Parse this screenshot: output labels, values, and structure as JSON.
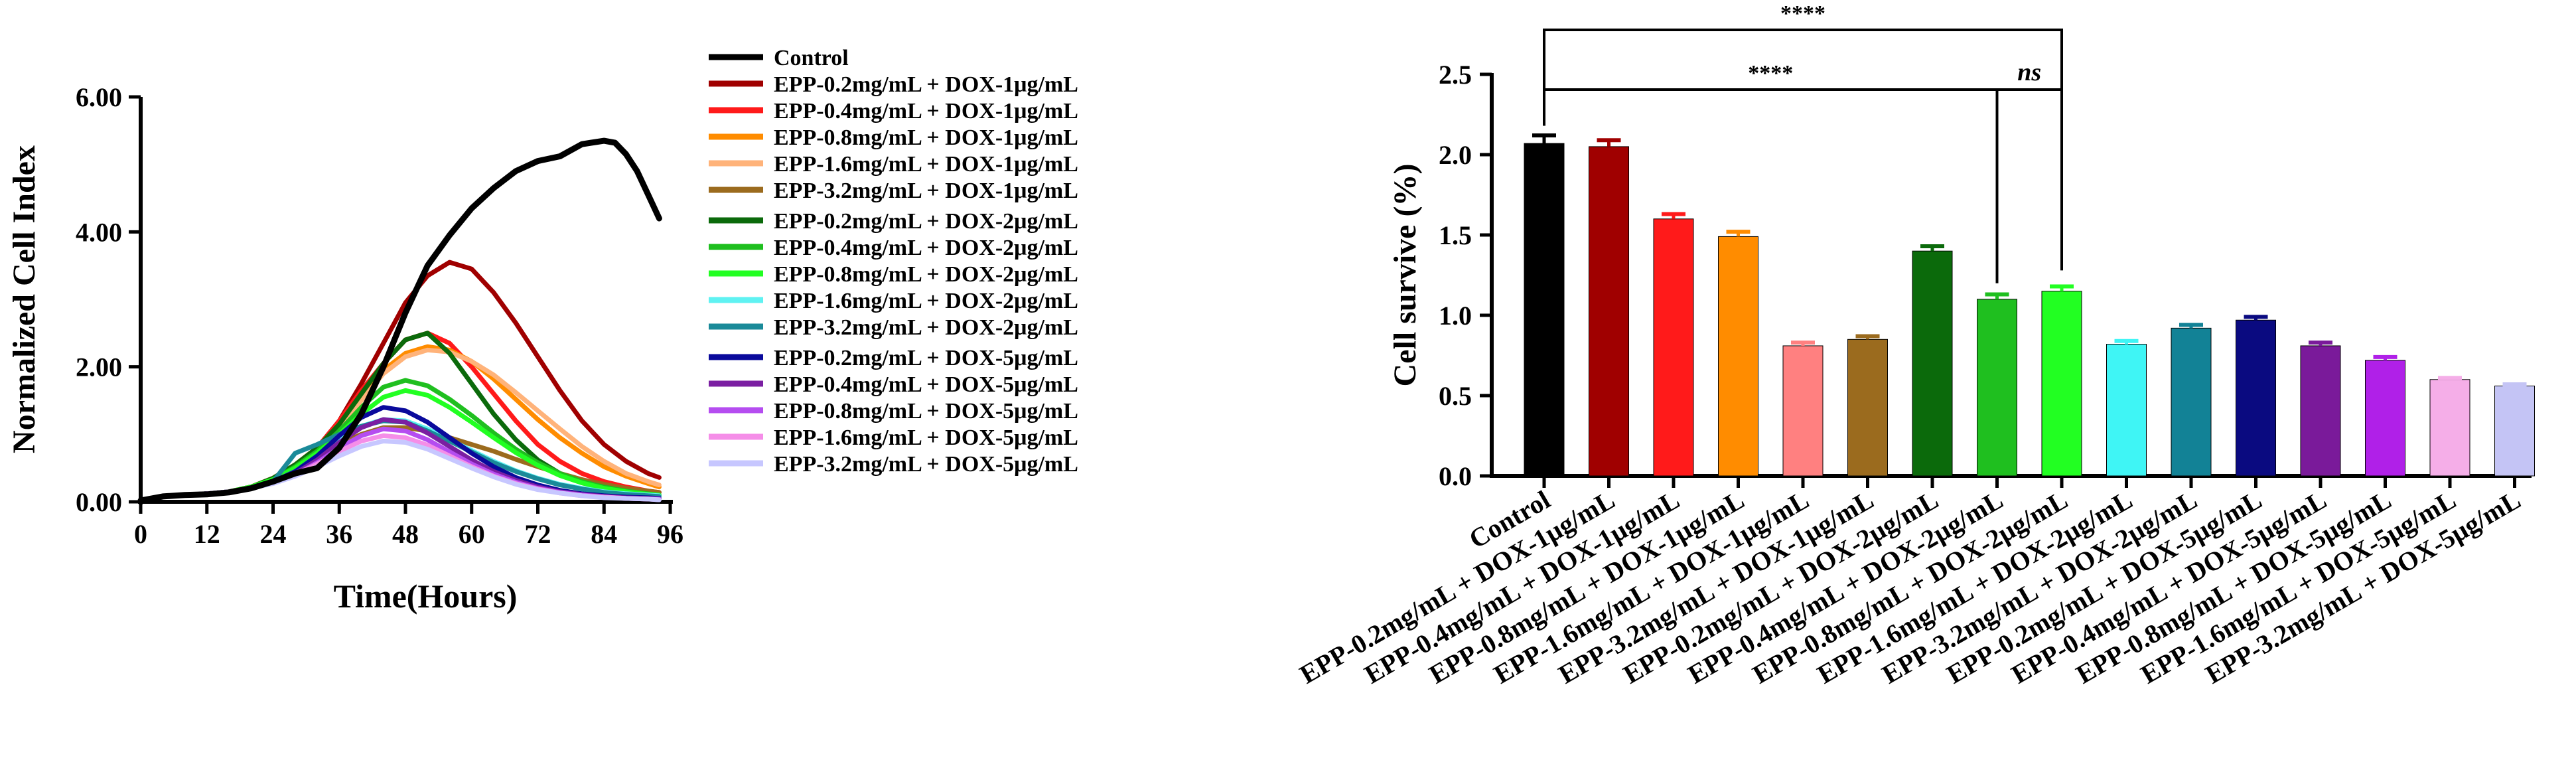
{
  "chart_data": [
    {
      "type": "line",
      "title": "",
      "xlabel": "Time(Hours)",
      "ylabel": "Normalized Cell Index",
      "xlim": [
        0,
        96
      ],
      "ylim": [
        0,
        6
      ],
      "xticks": [
        0,
        12,
        24,
        36,
        48,
        60,
        72,
        84,
        96
      ],
      "xtick_labels": [
        "0",
        "12",
        "24",
        "36",
        "48",
        "60",
        "72",
        "84",
        "96"
      ],
      "yticks": [
        0,
        2,
        4,
        6
      ],
      "ytick_labels": [
        "0.00",
        "2.00",
        "4.00",
        "6.00"
      ],
      "grid": false,
      "legend_position": "right",
      "series": [
        {
          "name": "Control",
          "color": "#000000",
          "x": [
            0,
            4,
            8,
            12,
            16,
            20,
            24,
            28,
            32,
            36,
            40,
            44,
            48,
            52,
            56,
            60,
            64,
            68,
            72,
            76,
            80,
            84,
            86,
            88,
            90,
            92,
            94
          ],
          "values": [
            0.02,
            0.08,
            0.1,
            0.11,
            0.14,
            0.2,
            0.3,
            0.42,
            0.5,
            0.8,
            1.3,
            2.0,
            2.8,
            3.5,
            3.95,
            4.35,
            4.65,
            4.9,
            5.05,
            5.12,
            5.3,
            5.35,
            5.32,
            5.15,
            4.9,
            4.55,
            4.2
          ]
        },
        {
          "name": "EPP-0.2mg/mL + DOX-1μg/mL",
          "color": "#a00000",
          "x": [
            0,
            4,
            8,
            12,
            16,
            20,
            24,
            28,
            32,
            36,
            40,
            44,
            48,
            52,
            56,
            60,
            64,
            68,
            72,
            76,
            80,
            84,
            88,
            92,
            94
          ],
          "values": [
            0.02,
            0.08,
            0.1,
            0.12,
            0.15,
            0.22,
            0.35,
            0.55,
            0.8,
            1.2,
            1.75,
            2.35,
            2.95,
            3.35,
            3.55,
            3.45,
            3.1,
            2.65,
            2.15,
            1.65,
            1.2,
            0.85,
            0.6,
            0.42,
            0.36
          ]
        },
        {
          "name": "EPP-0.4mg/mL + DOX-1μg/mL",
          "color": "#ff1a1a",
          "x": [
            0,
            4,
            8,
            12,
            16,
            20,
            24,
            28,
            32,
            36,
            40,
            44,
            48,
            52,
            56,
            60,
            64,
            68,
            72,
            76,
            80,
            84,
            88,
            92,
            94
          ],
          "values": [
            0.02,
            0.08,
            0.1,
            0.12,
            0.15,
            0.22,
            0.35,
            0.55,
            0.8,
            1.2,
            1.65,
            2.05,
            2.4,
            2.5,
            2.35,
            2.0,
            1.6,
            1.2,
            0.85,
            0.6,
            0.42,
            0.3,
            0.22,
            0.16,
            0.14
          ]
        },
        {
          "name": "EPP-0.8mg/mL + DOX-1μg/mL",
          "color": "#ff8c00",
          "x": [
            0,
            4,
            8,
            12,
            16,
            20,
            24,
            28,
            32,
            36,
            40,
            44,
            48,
            52,
            56,
            60,
            64,
            68,
            72,
            76,
            80,
            84,
            88,
            92,
            94
          ],
          "values": [
            0.02,
            0.08,
            0.1,
            0.12,
            0.15,
            0.22,
            0.35,
            0.55,
            0.8,
            1.15,
            1.55,
            1.95,
            2.2,
            2.3,
            2.25,
            2.08,
            1.82,
            1.52,
            1.22,
            0.95,
            0.72,
            0.52,
            0.38,
            0.27,
            0.22
          ]
        },
        {
          "name": "EPP-1.6mg/mL + DOX-1μg/mL",
          "color": "#ffb37a",
          "x": [
            0,
            4,
            8,
            12,
            16,
            20,
            24,
            28,
            32,
            36,
            40,
            44,
            48,
            52,
            56,
            60,
            64,
            68,
            72,
            76,
            80,
            84,
            88,
            92,
            94
          ],
          "values": [
            0.02,
            0.08,
            0.1,
            0.12,
            0.15,
            0.22,
            0.33,
            0.52,
            0.78,
            1.1,
            1.5,
            1.9,
            2.15,
            2.25,
            2.22,
            2.08,
            1.88,
            1.62,
            1.35,
            1.08,
            0.82,
            0.6,
            0.42,
            0.3,
            0.25
          ]
        },
        {
          "name": "EPP-3.2mg/mL + DOX-1μg/mL",
          "color": "#9b6b1e",
          "x": [
            0,
            4,
            8,
            12,
            16,
            20,
            24,
            28,
            32,
            36,
            40,
            44,
            48,
            52,
            56,
            60,
            64,
            68,
            72,
            76,
            80,
            84,
            88,
            92,
            94
          ],
          "values": [
            0.02,
            0.08,
            0.1,
            0.12,
            0.15,
            0.2,
            0.3,
            0.45,
            0.65,
            0.85,
            1.0,
            1.1,
            1.1,
            1.05,
            0.95,
            0.85,
            0.75,
            0.63,
            0.52,
            0.42,
            0.33,
            0.26,
            0.2,
            0.16,
            0.14
          ]
        },
        {
          "name": "EPP-0.2mg/mL + DOX-2μg/mL",
          "color": "#0b6a0b",
          "x": [
            0,
            4,
            8,
            12,
            16,
            20,
            24,
            28,
            32,
            36,
            40,
            44,
            48,
            52,
            56,
            60,
            64,
            68,
            72,
            76,
            80,
            84,
            88,
            92,
            94
          ],
          "values": [
            0.02,
            0.08,
            0.1,
            0.12,
            0.15,
            0.22,
            0.35,
            0.55,
            0.8,
            1.15,
            1.6,
            2.05,
            2.4,
            2.5,
            2.2,
            1.75,
            1.3,
            0.92,
            0.62,
            0.42,
            0.28,
            0.2,
            0.15,
            0.11,
            0.1
          ]
        },
        {
          "name": "EPP-0.4mg/mL + DOX-2μg/mL",
          "color": "#1fbf1f",
          "x": [
            0,
            4,
            8,
            12,
            16,
            20,
            24,
            28,
            32,
            36,
            40,
            44,
            48,
            52,
            56,
            60,
            64,
            68,
            72,
            76,
            80,
            84,
            88,
            92,
            94
          ],
          "values": [
            0.02,
            0.08,
            0.1,
            0.12,
            0.15,
            0.22,
            0.33,
            0.52,
            0.75,
            1.05,
            1.4,
            1.7,
            1.8,
            1.72,
            1.52,
            1.28,
            1.02,
            0.78,
            0.58,
            0.42,
            0.3,
            0.22,
            0.16,
            0.12,
            0.1
          ]
        },
        {
          "name": "EPP-0.8mg/mL + DOX-2μg/mL",
          "color": "#22ff22",
          "x": [
            0,
            4,
            8,
            12,
            16,
            20,
            24,
            28,
            32,
            36,
            40,
            44,
            48,
            52,
            56,
            60,
            64,
            68,
            72,
            76,
            80,
            84,
            88,
            92,
            94
          ],
          "values": [
            0.02,
            0.08,
            0.1,
            0.12,
            0.15,
            0.22,
            0.33,
            0.5,
            0.72,
            1.0,
            1.3,
            1.55,
            1.65,
            1.58,
            1.4,
            1.18,
            0.95,
            0.73,
            0.54,
            0.39,
            0.28,
            0.2,
            0.15,
            0.11,
            0.1
          ]
        },
        {
          "name": "EPP-1.6mg/mL + DOX-2μg/mL",
          "color": "#5ff2f2",
          "x": [
            0,
            4,
            8,
            12,
            16,
            20,
            24,
            28,
            32,
            36,
            40,
            44,
            48,
            52,
            56,
            60,
            64,
            68,
            72,
            76,
            80,
            84,
            88,
            92,
            94
          ],
          "values": [
            0.02,
            0.08,
            0.1,
            0.12,
            0.15,
            0.2,
            0.3,
            0.45,
            0.68,
            0.92,
            1.12,
            1.22,
            1.2,
            1.08,
            0.92,
            0.76,
            0.6,
            0.46,
            0.35,
            0.26,
            0.2,
            0.15,
            0.12,
            0.1,
            0.09
          ]
        },
        {
          "name": "EPP-3.2mg/mL + DOX-2μg/mL",
          "color": "#1a8a99",
          "x": [
            0,
            4,
            8,
            12,
            16,
            20,
            24,
            28,
            32,
            36,
            40,
            44,
            48,
            52,
            56,
            60,
            64,
            68,
            72,
            76,
            80,
            84,
            88,
            92,
            94
          ],
          "values": [
            0.02,
            0.08,
            0.1,
            0.12,
            0.15,
            0.2,
            0.3,
            0.72,
            0.85,
            1.0,
            1.12,
            1.2,
            1.18,
            1.05,
            0.9,
            0.74,
            0.58,
            0.45,
            0.34,
            0.25,
            0.19,
            0.14,
            0.11,
            0.09,
            0.08
          ]
        },
        {
          "name": "EPP-0.2mg/mL + DOX-5μg/mL",
          "color": "#0a0a9c",
          "x": [
            0,
            4,
            8,
            12,
            16,
            20,
            24,
            28,
            32,
            36,
            40,
            44,
            48,
            52,
            56,
            60,
            64,
            68,
            72,
            76,
            80,
            84,
            88,
            92,
            94
          ],
          "values": [
            0.02,
            0.08,
            0.1,
            0.12,
            0.15,
            0.2,
            0.3,
            0.45,
            0.68,
            0.98,
            1.25,
            1.4,
            1.35,
            1.18,
            0.95,
            0.72,
            0.52,
            0.36,
            0.25,
            0.17,
            0.12,
            0.09,
            0.07,
            0.06,
            0.05
          ]
        },
        {
          "name": "EPP-0.4mg/mL + DOX-5μg/mL",
          "color": "#7b1fa2",
          "x": [
            0,
            4,
            8,
            12,
            16,
            20,
            24,
            28,
            32,
            36,
            40,
            44,
            48,
            52,
            56,
            60,
            64,
            68,
            72,
            76,
            80,
            84,
            88,
            92,
            94
          ],
          "values": [
            0.02,
            0.08,
            0.1,
            0.12,
            0.15,
            0.2,
            0.3,
            0.42,
            0.62,
            0.88,
            1.1,
            1.22,
            1.18,
            1.02,
            0.82,
            0.62,
            0.45,
            0.32,
            0.22,
            0.15,
            0.11,
            0.08,
            0.06,
            0.05,
            0.04
          ]
        },
        {
          "name": "EPP-0.8mg/mL + DOX-5μg/mL",
          "color": "#b54df0",
          "x": [
            0,
            4,
            8,
            12,
            16,
            20,
            24,
            28,
            32,
            36,
            40,
            44,
            48,
            52,
            56,
            60,
            64,
            68,
            72,
            76,
            80,
            84,
            88,
            92,
            94
          ],
          "values": [
            0.02,
            0.08,
            0.1,
            0.12,
            0.15,
            0.2,
            0.28,
            0.4,
            0.58,
            0.8,
            0.98,
            1.08,
            1.05,
            0.92,
            0.74,
            0.56,
            0.41,
            0.29,
            0.2,
            0.14,
            0.1,
            0.07,
            0.05,
            0.04,
            0.04
          ]
        },
        {
          "name": "EPP-1.6mg/mL + DOX-5μg/mL",
          "color": "#f58ee8",
          "x": [
            0,
            4,
            8,
            12,
            16,
            20,
            24,
            28,
            32,
            36,
            40,
            44,
            48,
            52,
            56,
            60,
            64,
            68,
            72,
            76,
            80,
            84,
            88,
            92,
            94
          ],
          "values": [
            0.02,
            0.08,
            0.1,
            0.12,
            0.15,
            0.2,
            0.28,
            0.4,
            0.56,
            0.75,
            0.9,
            0.98,
            0.95,
            0.84,
            0.68,
            0.52,
            0.38,
            0.27,
            0.19,
            0.13,
            0.09,
            0.07,
            0.05,
            0.04,
            0.03
          ]
        },
        {
          "name": "EPP-3.2mg/mL + DOX-5μg/mL",
          "color": "#c7c7ff",
          "x": [
            0,
            4,
            8,
            12,
            16,
            20,
            24,
            28,
            32,
            36,
            40,
            44,
            48,
            52,
            56,
            60,
            64,
            68,
            72,
            76,
            80,
            84,
            88,
            92,
            94
          ],
          "values": [
            0.02,
            0.08,
            0.1,
            0.12,
            0.15,
            0.2,
            0.27,
            0.38,
            0.52,
            0.68,
            0.82,
            0.9,
            0.88,
            0.78,
            0.64,
            0.5,
            0.37,
            0.26,
            0.18,
            0.13,
            0.09,
            0.06,
            0.05,
            0.04,
            0.03
          ]
        }
      ]
    },
    {
      "type": "bar",
      "title": "",
      "xlabel": "",
      "ylabel": "Cell survive (%)",
      "ylim": [
        0,
        2.5
      ],
      "yticks": [
        0,
        0.5,
        1.0,
        1.5,
        2.0,
        2.5
      ],
      "ytick_labels": [
        "0.0",
        "0.5",
        "1.0",
        "1.5",
        "2.0",
        "2.5"
      ],
      "grid": false,
      "categories": [
        "Control",
        "EPP-0.2mg/mL + DOX-1μg/mL",
        "EPP-0.4mg/mL + DOX-1μg/mL",
        "EPP-0.8mg/mL + DOX-1μg/mL",
        "EPP-1.6mg/mL + DOX-1μg/mL",
        "EPP-3.2mg/mL + DOX-1μg/mL",
        "EPP-0.2mg/mL + DOX-2μg/mL",
        "EPP-0.4mg/mL + DOX-2μg/mL",
        "EPP-0.8mg/mL + DOX-2μg/mL",
        "EPP-1.6mg/mL + DOX-2μg/mL",
        "EPP-3.2mg/mL + DOX-2μg/mL",
        "EPP-0.2mg/mL + DOX-5μg/mL",
        "EPP-0.4mg/mL + DOX-5μg/mL",
        "EPP-0.8mg/mL + DOX-5μg/mL",
        "EPP-1.6mg/mL + DOX-5μg/mL",
        "EPP-3.2mg/mL + DOX-5μg/mL"
      ],
      "values": [
        2.07,
        2.05,
        1.6,
        1.49,
        0.81,
        0.85,
        1.4,
        1.1,
        1.15,
        0.82,
        0.92,
        0.97,
        0.81,
        0.72,
        0.6,
        0.56
      ],
      "errors": [
        0.05,
        0.04,
        0.03,
        0.03,
        0.02,
        0.02,
        0.03,
        0.03,
        0.03,
        0.02,
        0.02,
        0.02,
        0.02,
        0.02,
        0.01,
        0.01
      ],
      "colors": [
        "#000000",
        "#a00000",
        "#ff1a1a",
        "#ff8c00",
        "#ff8080",
        "#9b6b1e",
        "#0b6a0b",
        "#1fbf1f",
        "#22ff22",
        "#3ff5f5",
        "#128296",
        "#0a0a80",
        "#7a1a9a",
        "#b020e8",
        "#f5aee8",
        "#c4c4f5"
      ],
      "annotations": [
        {
          "text": "****",
          "from": 0,
          "to": 8
        },
        {
          "text": "****",
          "from": 0,
          "to": 7
        },
        {
          "text": "ns",
          "from": 7,
          "to": 8
        }
      ]
    }
  ]
}
